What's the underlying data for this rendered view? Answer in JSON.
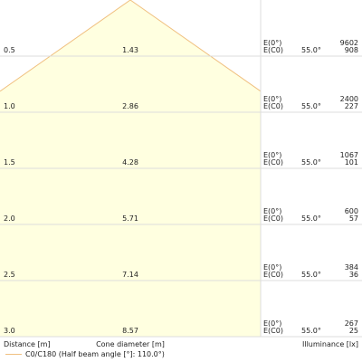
{
  "chart_data": {
    "type": "beam-cone",
    "distances": [
      "0.5",
      "1.0",
      "1.5",
      "2.0",
      "2.5",
      "3.0"
    ],
    "cone_diameters": [
      "1.43",
      "2.86",
      "4.28",
      "5.71",
      "7.14",
      "8.57"
    ],
    "e0_label": "E(0°)",
    "ec0_label": "E(C0)",
    "angle_label": "55.0°",
    "e0_values": [
      "9602",
      "2400",
      "1067",
      "600",
      "384",
      "267"
    ],
    "ec0_values": [
      "908",
      "227",
      "101",
      "57",
      "36",
      "25"
    ],
    "xlabel_distance": "Distance [m]",
    "xlabel_cone": "Cone diameter [m]",
    "xlabel_illuminance": "Illuminance [lx]",
    "legend": "C0/C180 (Half beam angle [°]: 110.0°)",
    "colors": {
      "fill": "#ffffe0",
      "outline": "#f0c080",
      "grid": "#dddddd"
    }
  }
}
